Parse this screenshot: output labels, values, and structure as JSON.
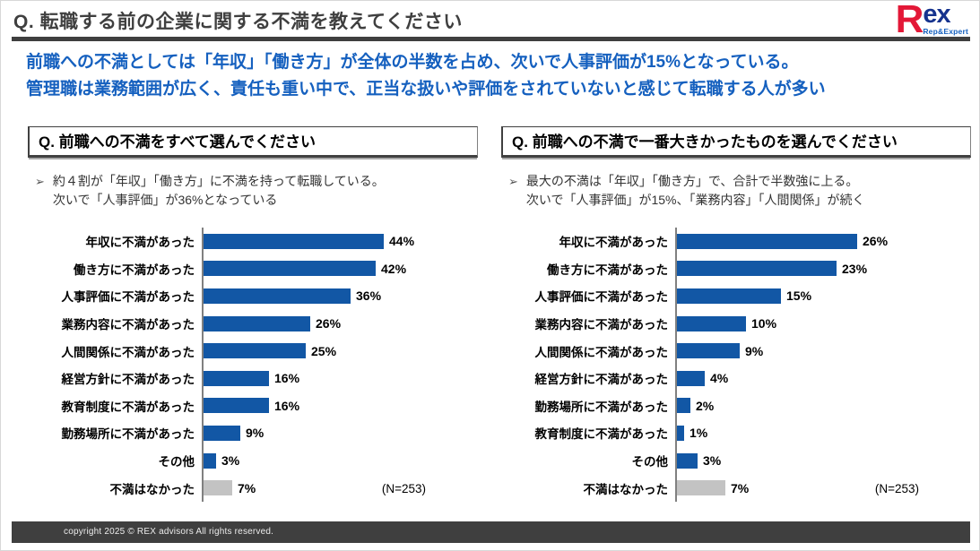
{
  "header": {
    "title": "Q. 転職する前の企業に関する不満を教えてください",
    "logo": {
      "r": "R",
      "ex": "ex",
      "tagline": "Rep&Expert"
    }
  },
  "lead": {
    "line1": "前職への不満としては「年収」「働き方」が全体の半数を占め、次いで人事評価が15%となっている。",
    "line2": "管理職は業務範囲が広く、責任も重い中で、正当な扱いや評価をされていないと感じて転職する人が多い"
  },
  "ui": {
    "bullet_marker": "➢"
  },
  "colors": {
    "bar_blue": "#1257a5",
    "bar_gray": "#c3c3c3",
    "lead_blue": "#1560bf",
    "title_gray": "#3f3f3f",
    "logo_red": "#e31837",
    "logo_navy": "#16338e"
  },
  "chart_data": [
    {
      "type": "bar",
      "orientation": "horizontal",
      "question": "Q. 前職への不満をすべて選んでください",
      "note_line1": "約４割が「年収」「働き方」に不満を持って転職している。",
      "note_line2": "次いで「人事評価」が36%となっている",
      "categories": [
        "年収に不満があった",
        "働き方に不満があった",
        "人事評価に不満があった",
        "業務内容に不満があった",
        "人間関係に不満があった",
        "経営方針に不満があった",
        "教育制度に不満があった",
        "勤務場所に不満があった",
        "その他",
        "不満はなかった"
      ],
      "values": [
        44,
        42,
        36,
        26,
        25,
        16,
        16,
        9,
        3,
        7
      ],
      "value_suffix": "%",
      "muted_indices": [
        9
      ],
      "xlim": [
        0,
        44
      ],
      "grid": false,
      "legend": false,
      "n_label": "(N=253)"
    },
    {
      "type": "bar",
      "orientation": "horizontal",
      "question": "Q. 前職への不満で一番大きかったものを選んでください",
      "note_line1": "最大の不満は「年収」「働き方」で、合計で半数強に上る。",
      "note_line2": "次いで「人事評価」が15%、「業務内容」「人間関係」が続く",
      "categories": [
        "年収に不満があった",
        "働き方に不満があった",
        "人事評価に不満があった",
        "業務内容に不満があった",
        "人間関係に不満があった",
        "経営方針に不満があった",
        "勤務場所に不満があった",
        "教育制度に不満があった",
        "その他",
        "不満はなかった"
      ],
      "values": [
        26,
        23,
        15,
        10,
        9,
        4,
        2,
        1,
        3,
        7
      ],
      "value_suffix": "%",
      "muted_indices": [
        9
      ],
      "xlim": [
        0,
        26
      ],
      "grid": false,
      "legend": false,
      "n_label": "(N=253)"
    }
  ],
  "footer": {
    "copyright": "copyright 2025 © REX advisors All rights reserved."
  }
}
